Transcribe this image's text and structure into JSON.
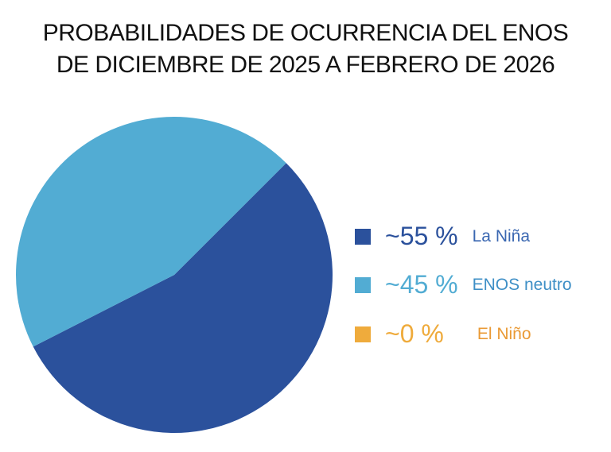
{
  "chart_data": {
    "type": "pie",
    "title": [
      "PROBABILIDADES DE OCURRENCIA DEL ENOS",
      "DE DICIEMBRE DE 2025 A FEBRERO DE 2026"
    ],
    "legend_position": "right",
    "slices": [
      {
        "label": "La Niña",
        "value": 55,
        "value_label": "~55 %",
        "color": "#2b519c",
        "label_color": "#3a67b1"
      },
      {
        "label": "ENOS neutro",
        "value": 45,
        "value_label": "~45 %",
        "color": "#52acd3",
        "label_color": "#3e8fc6"
      },
      {
        "label": "El Niño",
        "value": 0,
        "value_label": "~0 %",
        "color": "#efab3c",
        "label_color": "#ea9a35"
      }
    ]
  }
}
